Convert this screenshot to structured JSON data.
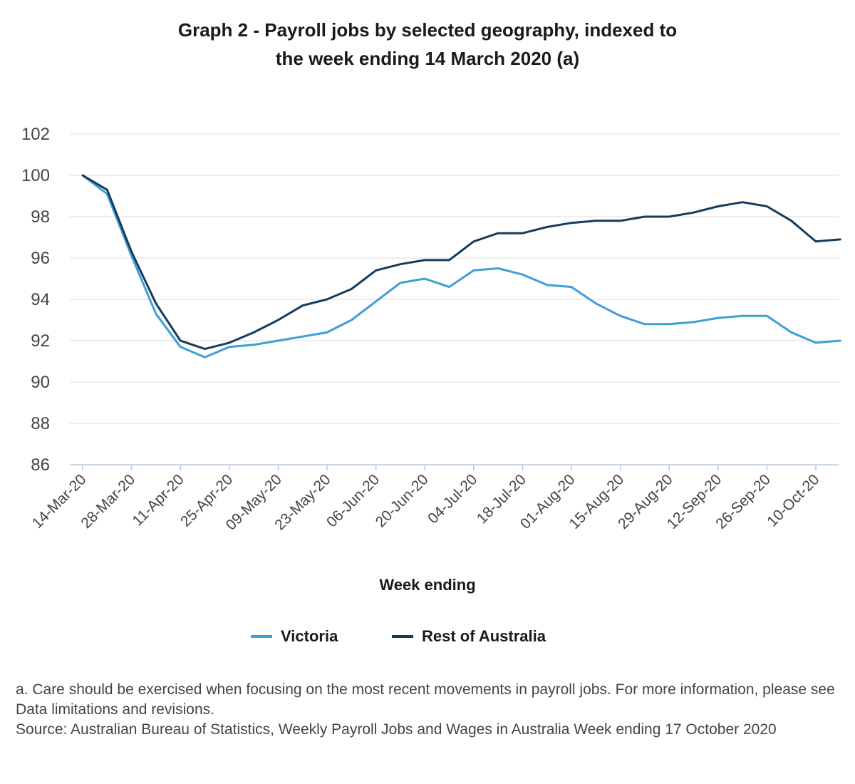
{
  "colors": {
    "victoria": "#3d9fd6",
    "rest": "#163c5c",
    "grid": "#dcdcdc",
    "axis": "#b9c8dc"
  },
  "chart_data": {
    "type": "line",
    "title_line1": "Graph 2 - Payroll jobs by selected geography, indexed to",
    "title_line2": "the week ending 14 March 2020 (a)",
    "xlabel": "Week ending",
    "ylabel": "",
    "ylim": [
      86,
      102
    ],
    "yticks": [
      "102",
      "100",
      "98",
      "96",
      "94",
      "92",
      "90",
      "88",
      "86"
    ],
    "tick_labels": [
      "14-Mar-20",
      "28-Mar-20",
      "11-Apr-20",
      "25-Apr-20",
      "09-May-20",
      "23-May-20",
      "06-Jun-20",
      "20-Jun-20",
      "04-Jul-20",
      "18-Jul-20",
      "01-Aug-20",
      "15-Aug-20",
      "29-Aug-20",
      "12-Sep-20",
      "26-Sep-20",
      "10-Oct-20"
    ],
    "x": [
      "14-Mar-20",
      "21-Mar-20",
      "28-Mar-20",
      "04-Apr-20",
      "11-Apr-20",
      "18-Apr-20",
      "25-Apr-20",
      "02-May-20",
      "09-May-20",
      "16-May-20",
      "23-May-20",
      "30-May-20",
      "06-Jun-20",
      "13-Jun-20",
      "20-Jun-20",
      "27-Jun-20",
      "04-Jul-20",
      "11-Jul-20",
      "18-Jul-20",
      "25-Jul-20",
      "01-Aug-20",
      "08-Aug-20",
      "15-Aug-20",
      "22-Aug-20",
      "29-Aug-20",
      "05-Sep-20",
      "12-Sep-20",
      "19-Sep-20",
      "26-Sep-20",
      "03-Oct-20",
      "10-Oct-20",
      "17-Oct-20"
    ],
    "series": [
      {
        "name": "Victoria",
        "color_key": "victoria",
        "values": [
          100.0,
          99.1,
          96.1,
          93.3,
          91.7,
          91.2,
          91.7,
          91.8,
          92.0,
          92.2,
          92.4,
          93.0,
          93.9,
          94.8,
          95.0,
          94.6,
          95.4,
          95.5,
          95.2,
          94.7,
          94.6,
          93.8,
          93.2,
          92.8,
          92.8,
          92.9,
          93.1,
          93.2,
          93.2,
          92.4,
          91.9,
          92.0
        ]
      },
      {
        "name": "Rest of Australia",
        "color_key": "rest",
        "values": [
          100.0,
          99.3,
          96.3,
          93.8,
          92.0,
          91.6,
          91.9,
          92.4,
          93.0,
          93.7,
          94.0,
          94.5,
          95.4,
          95.7,
          95.9,
          95.9,
          96.8,
          97.2,
          97.2,
          97.5,
          97.7,
          97.8,
          97.8,
          98.0,
          98.0,
          98.2,
          98.5,
          98.7,
          98.5,
          97.8,
          96.8,
          96.9
        ]
      }
    ],
    "grid": true,
    "legend_position": "bottom"
  },
  "notes": {
    "line1": "a. Care should be exercised when focusing on the most recent movements in payroll jobs. For more information, please see Data limitations and revisions.",
    "line2": "Source: Australian Bureau of Statistics, Weekly Payroll Jobs and Wages in Australia Week ending 17 October 2020"
  }
}
